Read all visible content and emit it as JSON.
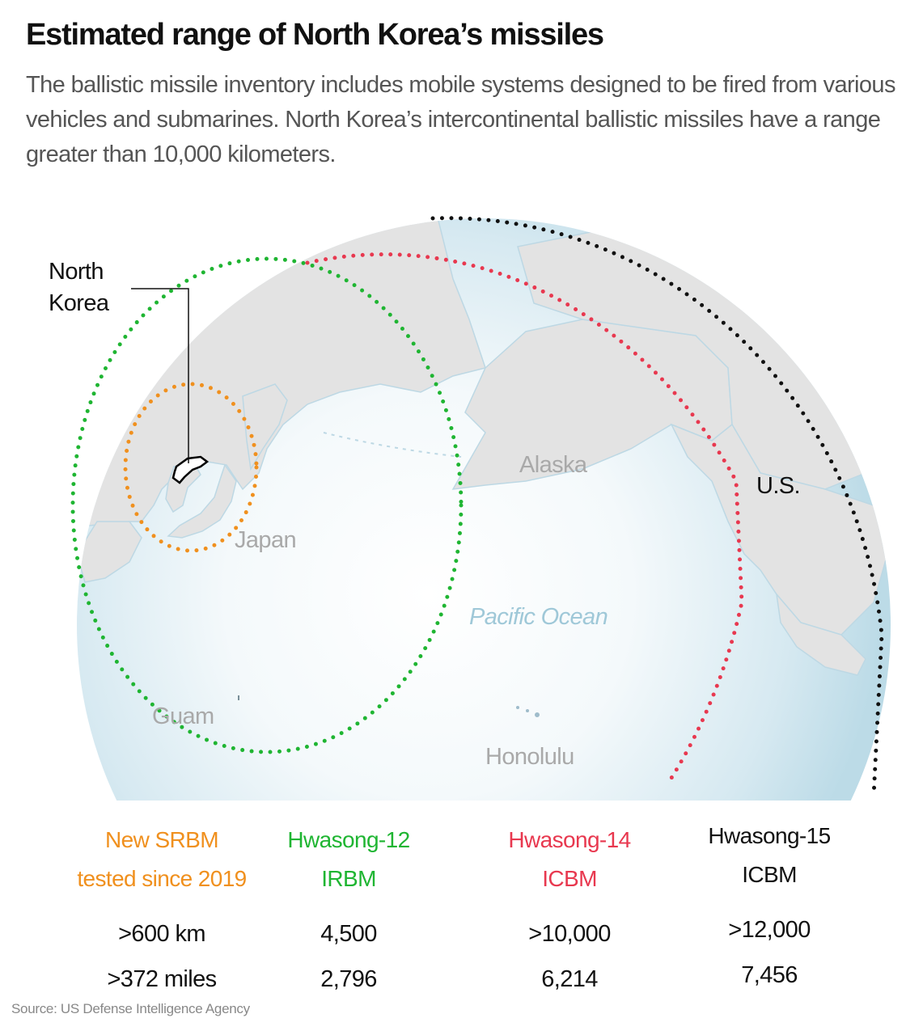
{
  "title": "Estimated range of North Korea’s missiles",
  "subtitle": "The ballistic missile inventory includes mobile systems designed to be fired from various vehicles and submarines. North Korea’s intercontinental ballistic missiles have a range greater than 10,000 kilometers.",
  "map_labels": {
    "north_korea": [
      "North",
      "Korea"
    ],
    "japan": "Japan",
    "alaska": "Alaska",
    "pacific_ocean": "Pacific Ocean",
    "guam": "Guam",
    "honolulu": "Honolulu",
    "us": "U.S."
  },
  "colors": {
    "srbm": "#f0901e",
    "irbm": "#1fb532",
    "icbm14": "#e8384f",
    "icbm15": "#111111",
    "land": "#e3e3e3",
    "ocean": "#cfe5ee",
    "map_label": "#a9a9a9",
    "ocean_label": "#9fc8d8"
  },
  "legend": [
    {
      "name_line1": "New SRBM",
      "name_line2": "tested since 2019",
      "km": ">600 km",
      "miles": ">372 miles",
      "color": "#f0901e"
    },
    {
      "name_line1": "Hwasong-12",
      "name_line2": "IRBM",
      "km": "4,500",
      "miles": "2,796",
      "color": "#1fb532"
    },
    {
      "name_line1": "Hwasong-14",
      "name_line2": "ICBM",
      "km": ">10,000",
      "miles": "6,214",
      "color": "#e8384f"
    },
    {
      "name_line1": "Hwasong-15",
      "name_line2": "ICBM",
      "km": ">12,000",
      "miles": "7,456",
      "color": "#111111"
    }
  ],
  "source": "Source: US Defense Intelligence Agency"
}
